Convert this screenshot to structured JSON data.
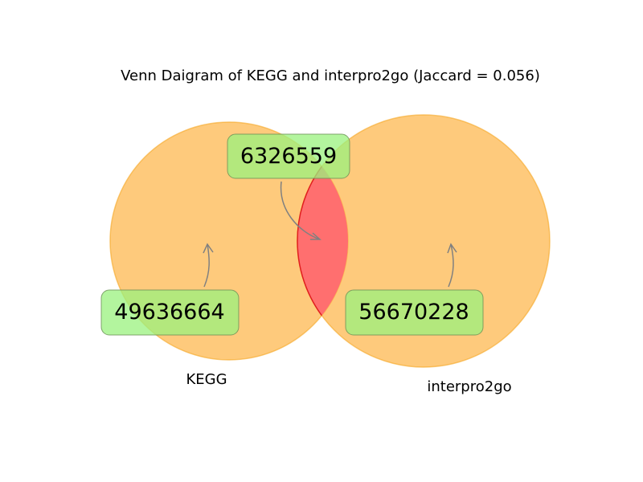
{
  "chart_data": {
    "type": "venn",
    "title": "Venn Daigram of KEGG and interpro2go (Jaccard = 0.056)",
    "sets": [
      {
        "name": "KEGG",
        "only_count": "49636664",
        "color": "#fdb444"
      },
      {
        "name": "interpro2go",
        "only_count": "56670228",
        "color": "#fdb444"
      }
    ],
    "intersection": {
      "count": "6326559",
      "color": "#ff6f6f"
    },
    "jaccard": 0.056,
    "label_box_color": "#99f27e",
    "label_box_border": "#6a8f55",
    "arrow_color": "#808080"
  }
}
